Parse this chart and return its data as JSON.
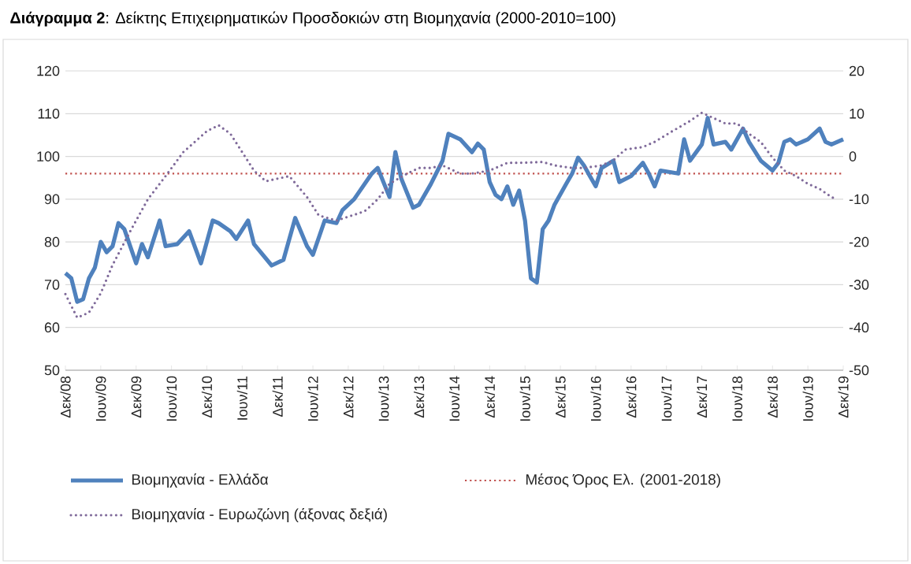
{
  "chart_data": {
    "type": "line",
    "title": "**Διάγραμμα 2**: Δείκτης Επιχειρηματικών Προσδοκιών στη Βιομηχανία (2000-2010=100)",
    "series": [
      {
        "name": "Βιομηχανία  - Ελλάδα",
        "color": "#4f81bd",
        "line_style": "solid",
        "x": [
          "2008-12",
          "2009-01",
          "2009-02",
          "2009-03",
          "2009-04",
          "2009-05",
          "2009-06",
          "2009-07",
          "2009-08",
          "2009-09",
          "2009-10",
          "2009-11",
          "2009-12",
          "2010-01",
          "2010-02",
          "2010-04",
          "2010-05",
          "2010-07",
          "2010-09",
          "2010-11",
          "2011-01",
          "2011-02",
          "2011-04",
          "2011-05",
          "2011-07",
          "2011-08",
          "2011-11",
          "2012-01",
          "2012-03",
          "2012-05",
          "2012-06",
          "2012-08",
          "2012-10",
          "2012-11",
          "2013-01",
          "2013-04",
          "2013-05",
          "2013-07",
          "2013-08",
          "2013-09",
          "2013-11",
          "2013-12",
          "2014-02",
          "2014-04",
          "2014-05",
          "2014-07",
          "2014-09",
          "2014-10",
          "2014-11",
          "2014-12",
          "2015-01",
          "2015-02",
          "2015-03",
          "2015-04",
          "2015-05",
          "2015-06",
          "2015-07",
          "2015-08",
          "2015-09",
          "2015-10",
          "2015-11",
          "2016-01",
          "2016-02",
          "2016-03",
          "2016-04",
          "2016-05",
          "2016-06",
          "2016-07",
          "2016-09",
          "2016-10",
          "2016-12",
          "2017-02",
          "2017-03",
          "2017-04",
          "2017-05",
          "2017-08",
          "2017-09",
          "2017-10",
          "2017-12",
          "2018-01",
          "2018-02",
          "2018-04",
          "2018-05",
          "2018-07",
          "2018-08",
          "2018-10",
          "2018-12",
          "2019-01",
          "2019-02",
          "2019-03",
          "2019-04",
          "2019-06",
          "2019-08",
          "2019-09",
          "2019-10",
          "2019-12"
        ],
        "values": [
          72.7,
          71.5,
          66,
          66.6,
          71.5,
          74,
          80,
          77.6,
          79,
          84.4,
          83,
          79,
          75,
          79.5,
          76.4,
          85,
          79,
          79.5,
          82.5,
          75,
          85,
          84.4,
          82.5,
          80.7,
          85,
          79.5,
          74.5,
          75.8,
          85.6,
          79,
          77,
          85,
          84.4,
          87.4,
          90,
          96,
          97.3,
          90.5,
          101,
          94.8,
          88,
          88.7,
          93.5,
          99,
          105.3,
          104,
          101,
          103,
          101.6,
          94,
          91,
          90,
          93,
          88.7,
          92,
          85,
          71.5,
          70.5,
          83,
          85,
          88.7,
          93.6,
          96,
          99.7,
          97.9,
          95.4,
          93,
          97.3,
          99,
          94,
          95.4,
          98.5,
          96,
          93,
          96.7,
          96,
          104,
          99,
          102.8,
          109,
          102.8,
          103.4,
          101.6,
          106.5,
          103.4,
          99,
          96.7,
          98.5,
          103.4,
          104,
          102.8,
          104,
          106.5,
          103.4,
          102.8,
          104
        ]
      },
      {
        "name": "Βιομηχανία - Ευρωζώνη (άξονας δεξιά)",
        "color": "#7f6a9a",
        "line_style": "dotted",
        "axis": "y2",
        "x": [
          "2008-12",
          "2009-02",
          "2009-04",
          "2009-06",
          "2009-08",
          "2009-11",
          "2010-02",
          "2010-05",
          "2010-08",
          "2010-12",
          "2011-02",
          "2011-04",
          "2011-06",
          "2011-08",
          "2011-10",
          "2011-12",
          "2012-02",
          "2012-05",
          "2012-07",
          "2012-10",
          "2013-02",
          "2013-03",
          "2013-05",
          "2013-07",
          "2013-10",
          "2013-12",
          "2014-02",
          "2014-04",
          "2014-07",
          "2014-09",
          "2014-12",
          "2015-03",
          "2015-05",
          "2015-09",
          "2015-11",
          "2016-02",
          "2016-04",
          "2016-07",
          "2016-09",
          "2016-11",
          "2017-02",
          "2017-04",
          "2017-07",
          "2017-10",
          "2017-12",
          "2018-01",
          "2018-04",
          "2018-06",
          "2018-08",
          "2018-10",
          "2018-12",
          "2019-02",
          "2019-04",
          "2019-06",
          "2019-08",
          "2019-10",
          "2019-11"
        ],
        "values": [
          -32.2,
          -37.7,
          -36.5,
          -32,
          -25.4,
          -17.5,
          -10,
          -4.6,
          1,
          5.9,
          7.3,
          5.3,
          1,
          -3.3,
          -5.8,
          -5.2,
          -4.6,
          -9.5,
          -13.8,
          -15,
          -13.2,
          -12.6,
          -10,
          -6.4,
          -4,
          -2.7,
          -2.7,
          -2.1,
          -4,
          -4,
          -3.3,
          -1.5,
          -1.5,
          -1.3,
          -2.1,
          -2.7,
          -2.7,
          -2.1,
          -0.9,
          1.6,
          2.2,
          3.4,
          5.9,
          8.3,
          10.2,
          9.6,
          7.7,
          7.7,
          5.3,
          3.4,
          -0.3,
          -3.3,
          -4.6,
          -6.4,
          -7.6,
          -9.5,
          -10.1
        ]
      }
    ],
    "ref_lines": [
      {
        "axis": "y",
        "value": 96,
        "label": "Μέσος Όρος Ελ. (2001-2018)",
        "color": "#c0504d",
        "line_style": "dotted"
      }
    ],
    "xlim": [
      "2008-12",
      "2019-12"
    ],
    "xticks": [
      {
        "value": "2008-12",
        "label": "Δεκ/08"
      },
      {
        "value": "2009-06",
        "label": "Ιουν/09"
      },
      {
        "value": "2009-12",
        "label": "Δεκ/09"
      },
      {
        "value": "2010-06",
        "label": "Ιουν/10"
      },
      {
        "value": "2010-12",
        "label": "Δεκ/10"
      },
      {
        "value": "2011-06",
        "label": "Ιουν/11"
      },
      {
        "value": "2011-12",
        "label": "Δεκ/11"
      },
      {
        "value": "2012-06",
        "label": "Ιουν/12"
      },
      {
        "value": "2012-12",
        "label": "Δεκ/12"
      },
      {
        "value": "2013-06",
        "label": "Ιουν/13"
      },
      {
        "value": "2013-12",
        "label": "Δεκ/13"
      },
      {
        "value": "2014-06",
        "label": "Ιουν/14"
      },
      {
        "value": "2014-12",
        "label": "Δεκ/14"
      },
      {
        "value": "2015-06",
        "label": "Ιουν/15"
      },
      {
        "value": "2015-12",
        "label": "Δεκ/15"
      },
      {
        "value": "2016-06",
        "label": "Ιουν/16"
      },
      {
        "value": "2016-12",
        "label": "Δεκ/16"
      },
      {
        "value": "2017-06",
        "label": "Ιουν/17"
      },
      {
        "value": "2017-12",
        "label": "Δεκ/17"
      },
      {
        "value": "2018-06",
        "label": "Ιουν/18"
      },
      {
        "value": "2018-12",
        "label": "Δεκ/18"
      },
      {
        "value": "2019-06",
        "label": "Ιουν/19"
      },
      {
        "value": "2019-12",
        "label": "Δεκ/19"
      }
    ],
    "ylim": [
      50,
      120
    ],
    "yticks": [
      50,
      60,
      70,
      80,
      90,
      100,
      110,
      120
    ],
    "y2lim": [
      -50,
      20
    ],
    "y2ticks": [
      -50,
      -40,
      -30,
      -20,
      -10,
      0,
      10,
      20
    ],
    "grid": "y",
    "legend": "bottom",
    "marker": "none"
  }
}
